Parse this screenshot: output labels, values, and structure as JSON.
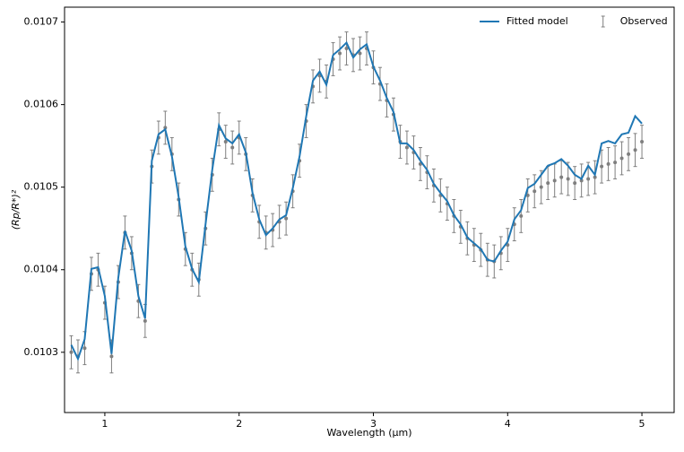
{
  "chart_data": {
    "type": "line",
    "x_label": "Wavelength (μm)",
    "y_label": "(Rp/R*)²",
    "xlim": [
      0.7,
      5.24
    ],
    "ylim": [
      0.010227,
      0.010718
    ],
    "xticks": [
      1,
      2,
      3,
      4,
      5
    ],
    "yticks": [
      0.0103,
      0.0104,
      0.0105,
      0.0106,
      0.0107
    ],
    "legend": "upper right",
    "x": [
      0.75,
      0.8,
      0.85,
      0.9,
      0.95,
      1.0,
      1.05,
      1.1,
      1.15,
      1.2,
      1.25,
      1.3,
      1.35,
      1.4,
      1.45,
      1.5,
      1.55,
      1.6,
      1.65,
      1.7,
      1.75,
      1.8,
      1.85,
      1.9,
      1.95,
      2.0,
      2.05,
      2.1,
      2.15,
      2.2,
      2.25,
      2.3,
      2.35,
      2.4,
      2.45,
      2.5,
      2.55,
      2.6,
      2.65,
      2.7,
      2.75,
      2.8,
      2.85,
      2.9,
      2.95,
      3.0,
      3.05,
      3.1,
      3.15,
      3.2,
      3.25,
      3.3,
      3.35,
      3.4,
      3.45,
      3.5,
      3.55,
      3.6,
      3.65,
      3.7,
      3.75,
      3.8,
      3.85,
      3.9,
      3.95,
      4.0,
      4.05,
      4.1,
      4.15,
      4.2,
      4.25,
      4.3,
      4.35,
      4.4,
      4.45,
      4.5,
      4.55,
      4.6,
      4.65,
      4.7,
      4.75,
      4.8,
      4.85,
      4.9,
      4.95,
      5.0
    ],
    "series": [
      {
        "name": "Fitted model",
        "color": "#1f77b4",
        "style": "line",
        "values": [
          0.010309,
          0.010292,
          0.010316,
          0.010401,
          0.010403,
          0.010368,
          0.010298,
          0.01039,
          0.010447,
          0.010423,
          0.010368,
          0.010341,
          0.010532,
          0.010564,
          0.01057,
          0.010537,
          0.010488,
          0.010428,
          0.010401,
          0.010385,
          0.010455,
          0.010521,
          0.010575,
          0.010559,
          0.010553,
          0.010564,
          0.010542,
          0.010493,
          0.010461,
          0.010442,
          0.01045,
          0.010461,
          0.010466,
          0.010499,
          0.010537,
          0.010586,
          0.010629,
          0.01064,
          0.010624,
          0.01066,
          0.010667,
          0.010675,
          0.010657,
          0.010667,
          0.010673,
          0.010646,
          0.010629,
          0.010608,
          0.010591,
          0.010553,
          0.010553,
          0.010545,
          0.010532,
          0.010521,
          0.010504,
          0.010493,
          0.010483,
          0.010466,
          0.010455,
          0.010439,
          0.010432,
          0.010425,
          0.010412,
          0.01041,
          0.010423,
          0.010434,
          0.010461,
          0.010472,
          0.010499,
          0.010504,
          0.010515,
          0.010526,
          0.010529,
          0.010534,
          0.010526,
          0.010515,
          0.01051,
          0.010526,
          0.010515,
          0.010553,
          0.010556,
          0.010553,
          0.010564,
          0.010566,
          0.010586,
          0.010577
        ]
      },
      {
        "name": "Observed",
        "color": "#7f7f7f",
        "style": "errorbar",
        "error": 2e-05,
        "values": [
          0.0103,
          0.010295,
          0.010305,
          0.010395,
          0.0104,
          0.01036,
          0.010295,
          0.010385,
          0.010445,
          0.01042,
          0.010362,
          0.010338,
          0.010525,
          0.01056,
          0.010572,
          0.01054,
          0.010485,
          0.010425,
          0.0104,
          0.010388,
          0.01045,
          0.010515,
          0.01057,
          0.010555,
          0.010548,
          0.01056,
          0.01054,
          0.01049,
          0.010458,
          0.010445,
          0.010448,
          0.010458,
          0.010462,
          0.010495,
          0.010532,
          0.01058,
          0.010622,
          0.010635,
          0.010628,
          0.010655,
          0.010662,
          0.010668,
          0.01066,
          0.010662,
          0.010668,
          0.010645,
          0.010625,
          0.010605,
          0.010588,
          0.010555,
          0.010548,
          0.010542,
          0.010528,
          0.010518,
          0.010502,
          0.01049,
          0.01048,
          0.010465,
          0.010452,
          0.010438,
          0.01043,
          0.010424,
          0.010412,
          0.01041,
          0.01042,
          0.01043,
          0.010455,
          0.010465,
          0.01049,
          0.010495,
          0.0105,
          0.010505,
          0.010508,
          0.010512,
          0.01051,
          0.010505,
          0.010508,
          0.01051,
          0.010512,
          0.010525,
          0.010528,
          0.01053,
          0.010535,
          0.01054,
          0.010545,
          0.010555
        ]
      }
    ]
  }
}
